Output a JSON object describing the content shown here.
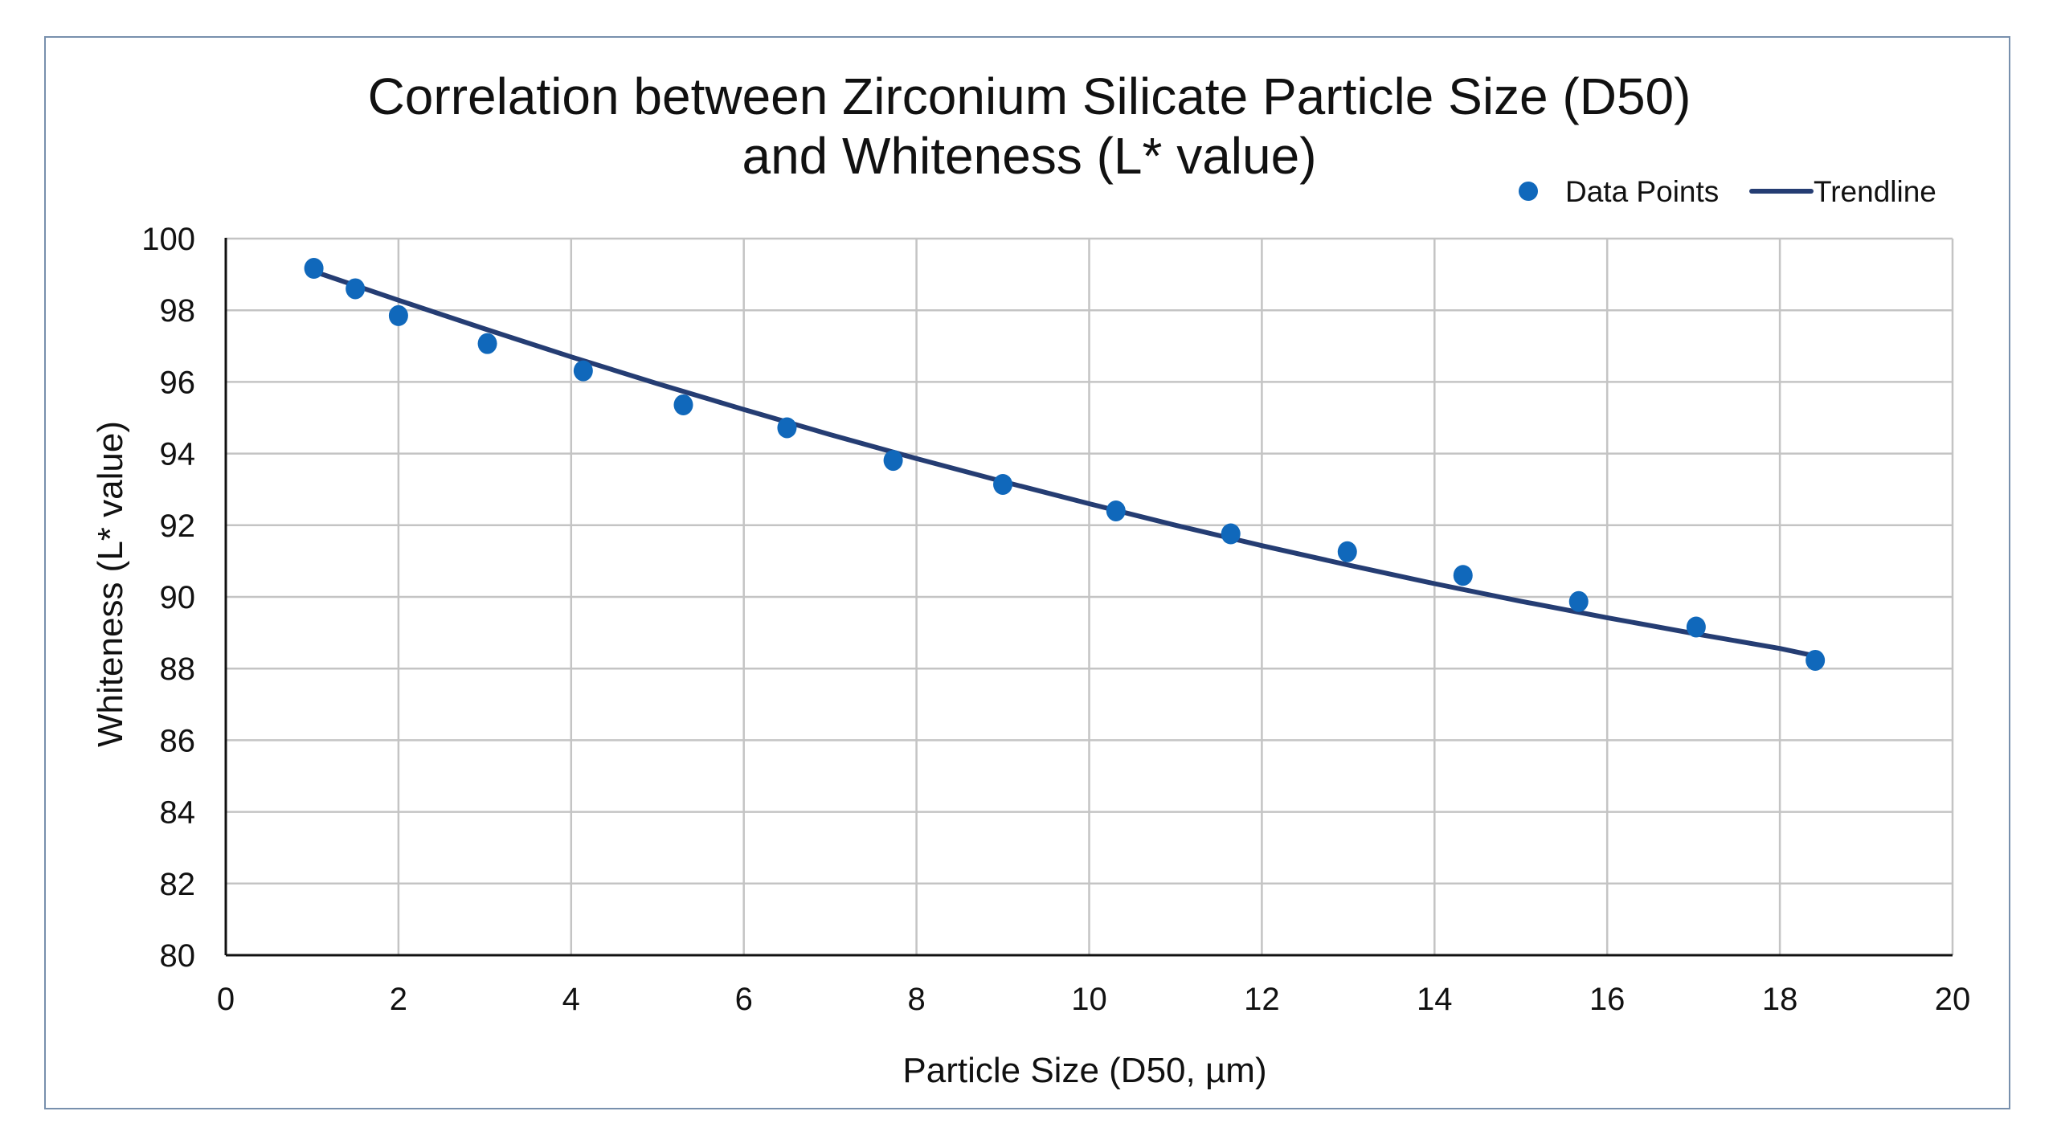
{
  "chart_data": {
    "type": "scatter",
    "title": [
      "Correlation between Zirconium Silicate Particle Size (D50)",
      "and Whiteness (L* value)"
    ],
    "xlabel": "Particle Size (D50, µm)",
    "ylabel": "Whiteness (L* value)",
    "xlim": [
      0,
      20
    ],
    "ylim": [
      80,
      100
    ],
    "xticks": [
      "0",
      "2",
      "4",
      "6",
      "8",
      "10",
      "12",
      "14",
      "16",
      "18",
      "20"
    ],
    "yticks": [
      "80",
      "82",
      "84",
      "86",
      "88",
      "90",
      "92",
      "94",
      "96",
      "98",
      "100"
    ],
    "grid": true,
    "legend_position": "top-right",
    "legend": [
      "Data Points",
      "Trendline"
    ],
    "series": [
      {
        "name": "Data Points",
        "kind": "scatter",
        "color": "#1068bb",
        "x": [
          1.02,
          1.5,
          2.0,
          3.03,
          4.14,
          5.3,
          6.5,
          7.73,
          9.0,
          10.31,
          11.64,
          12.99,
          14.33,
          15.67,
          17.03,
          18.41
        ],
        "y": [
          99.17,
          98.6,
          97.85,
          97.07,
          96.31,
          95.36,
          94.72,
          93.81,
          93.14,
          92.4,
          91.76,
          91.26,
          90.6,
          89.87,
          89.16,
          88.23
        ]
      },
      {
        "name": "Trendline",
        "kind": "line",
        "color": "#253d73",
        "x": [
          1.0,
          2.0,
          3.0,
          4.0,
          5.0,
          6.0,
          7.0,
          8.0,
          9.0,
          10.0,
          11.0,
          12.0,
          13.0,
          14.0,
          15.0,
          16.0,
          17.0,
          18.0,
          18.41
        ],
        "y": [
          99.1,
          98.28,
          97.48,
          96.7,
          95.95,
          95.23,
          94.53,
          93.86,
          93.22,
          92.6,
          92.0,
          91.43,
          90.89,
          90.37,
          89.88,
          89.42,
          88.98,
          88.56,
          88.35
        ]
      }
    ]
  }
}
